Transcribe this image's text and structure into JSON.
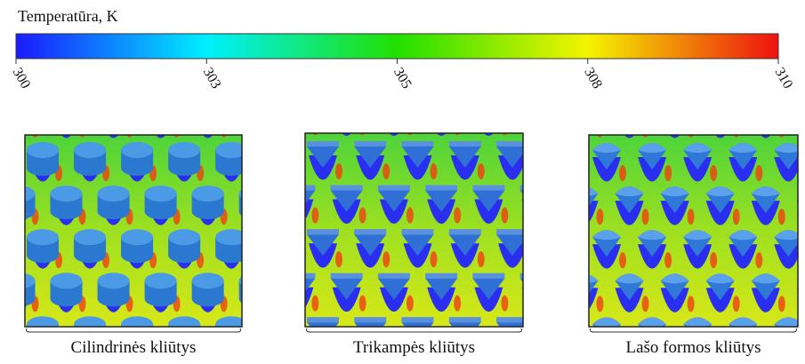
{
  "colorbar": {
    "title": "Temperatūra, K",
    "ticks": [
      "300",
      "303",
      "305",
      "308",
      "310"
    ]
  },
  "panels": [
    {
      "caption": "Cilindrinės kliūtys"
    },
    {
      "caption": "Trikampės kliūtys"
    },
    {
      "caption": "Lašo formos kliūtys"
    }
  ]
}
